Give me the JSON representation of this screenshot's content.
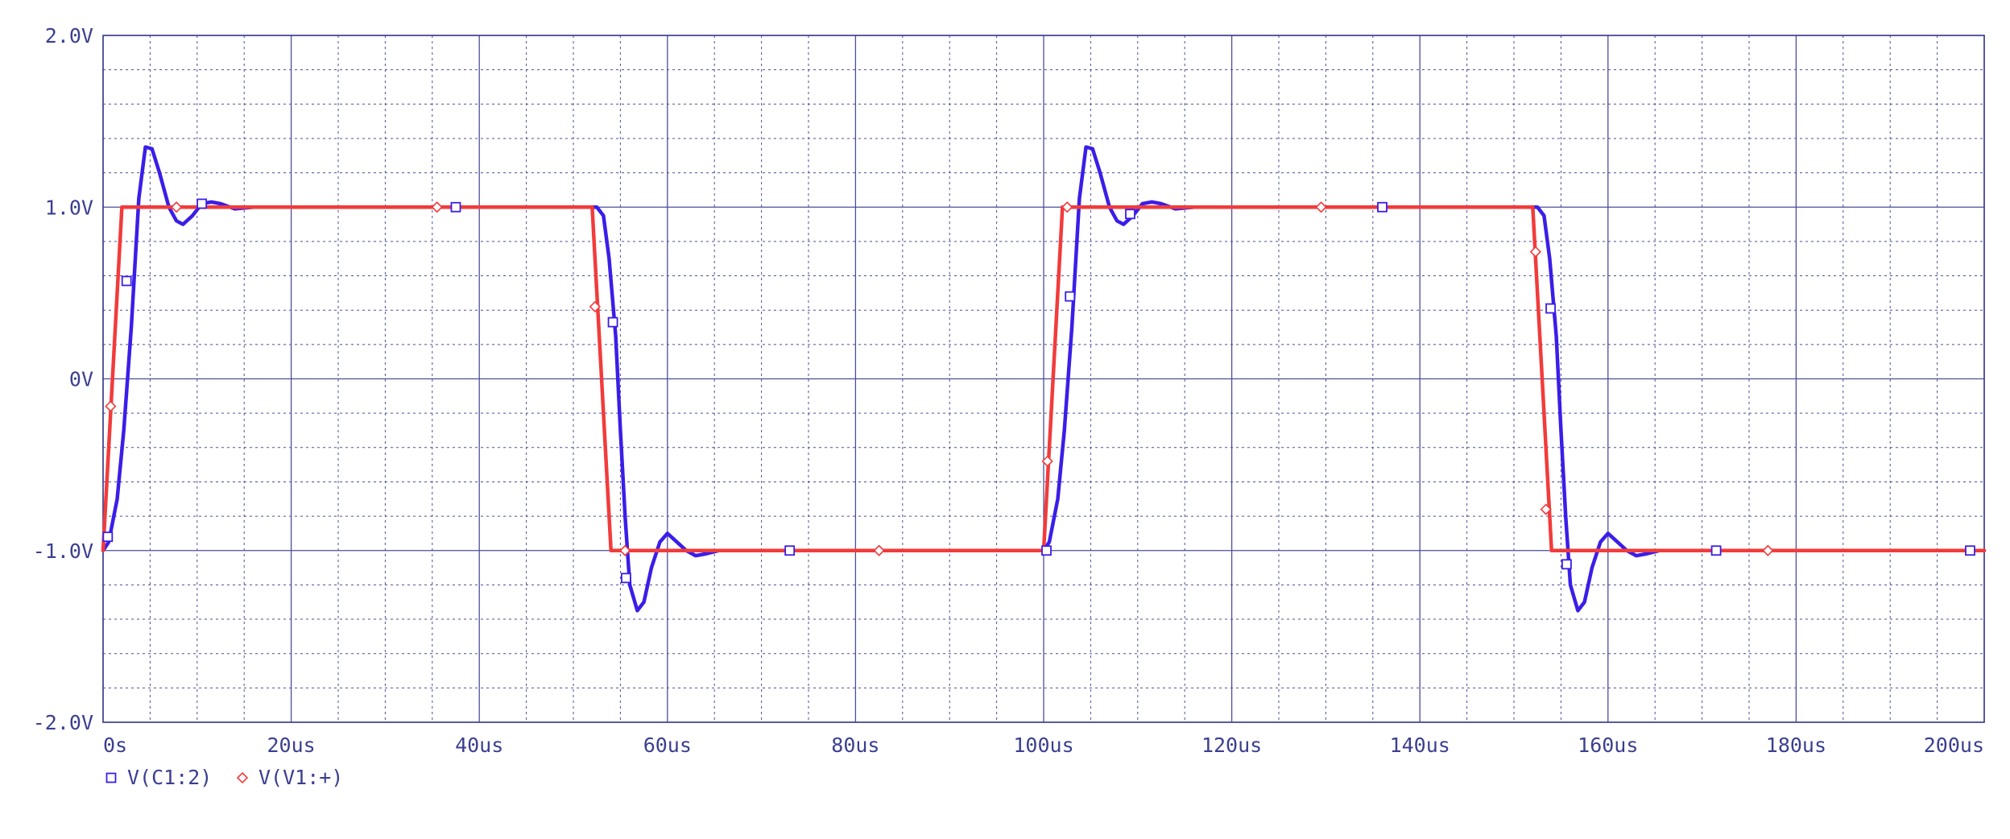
{
  "chart_data": {
    "type": "line",
    "title": "",
    "xlabel": "",
    "ylabel": "",
    "xlim": [
      0,
      200
    ],
    "ylim": [
      -2.0,
      2.0
    ],
    "x_unit": "us",
    "y_unit": "V",
    "grid": true,
    "x_ticks": [
      0,
      20,
      40,
      60,
      80,
      100,
      120,
      140,
      160,
      180,
      200
    ],
    "x_tick_labels": [
      "0s",
      "20us",
      "40us",
      "60us",
      "80us",
      "100us",
      "120us",
      "140us",
      "160us",
      "180us",
      "200us"
    ],
    "y_ticks": [
      2.0,
      1.0,
      0,
      -1.0,
      -2.0
    ],
    "y_tick_labels": [
      "2.0V",
      "1.0V",
      "0V",
      "-1.0V",
      "-2.0V"
    ],
    "legend_position": "bottom-left",
    "series": [
      {
        "name": "V(C1:2)",
        "color": "#3a1ee8",
        "marker": "square",
        "points": [
          [
            0,
            -1.0
          ],
          [
            0.6,
            -0.95
          ],
          [
            1.5,
            -0.7
          ],
          [
            2.2,
            -0.3
          ],
          [
            3,
            0.3
          ],
          [
            3.8,
            1.05
          ],
          [
            4.5,
            1.35
          ],
          [
            5.2,
            1.34
          ],
          [
            6,
            1.2
          ],
          [
            7,
            1.0
          ],
          [
            7.8,
            0.92
          ],
          [
            8.5,
            0.9
          ],
          [
            9.5,
            0.95
          ],
          [
            10.5,
            1.02
          ],
          [
            11.5,
            1.03
          ],
          [
            12.5,
            1.02
          ],
          [
            14,
            0.99
          ],
          [
            16,
            1.0
          ],
          [
            20,
            1.0
          ],
          [
            30,
            1.0
          ],
          [
            40,
            1.0
          ],
          [
            50,
            1.0
          ],
          [
            52.5,
            1.0
          ],
          [
            53.2,
            0.95
          ],
          [
            53.8,
            0.7
          ],
          [
            54.5,
            0.25
          ],
          [
            55,
            -0.3
          ],
          [
            55.5,
            -0.8
          ],
          [
            56,
            -1.2
          ],
          [
            56.8,
            -1.35
          ],
          [
            57.5,
            -1.3
          ],
          [
            58.3,
            -1.1
          ],
          [
            59.2,
            -0.95
          ],
          [
            60,
            -0.9
          ],
          [
            61,
            -0.95
          ],
          [
            62,
            -1.0
          ],
          [
            63,
            -1.03
          ],
          [
            64,
            -1.02
          ],
          [
            65.5,
            -1.0
          ],
          [
            68,
            -1.0
          ],
          [
            80,
            -1.0
          ],
          [
            90,
            -1.0
          ],
          [
            100,
            -1.0
          ],
          [
            100.6,
            -0.95
          ],
          [
            101.5,
            -0.7
          ],
          [
            102.2,
            -0.3
          ],
          [
            103,
            0.3
          ],
          [
            103.8,
            1.05
          ],
          [
            104.5,
            1.35
          ],
          [
            105.2,
            1.34
          ],
          [
            106,
            1.2
          ],
          [
            107,
            1.0
          ],
          [
            107.8,
            0.92
          ],
          [
            108.5,
            0.9
          ],
          [
            109.5,
            0.95
          ],
          [
            110.5,
            1.02
          ],
          [
            111.5,
            1.03
          ],
          [
            112.5,
            1.02
          ],
          [
            114,
            0.99
          ],
          [
            116,
            1.0
          ],
          [
            130,
            1.0
          ],
          [
            140,
            1.0
          ],
          [
            152.5,
            1.0
          ],
          [
            153.2,
            0.95
          ],
          [
            153.8,
            0.7
          ],
          [
            154.5,
            0.25
          ],
          [
            155,
            -0.3
          ],
          [
            155.5,
            -0.8
          ],
          [
            156,
            -1.2
          ],
          [
            156.8,
            -1.35
          ],
          [
            157.5,
            -1.3
          ],
          [
            158.3,
            -1.1
          ],
          [
            159.2,
            -0.95
          ],
          [
            160,
            -0.9
          ],
          [
            161,
            -0.95
          ],
          [
            162,
            -1.0
          ],
          [
            163,
            -1.03
          ],
          [
            164,
            -1.02
          ],
          [
            165.5,
            -1.0
          ],
          [
            170,
            -1.0
          ],
          [
            200,
            -1.0
          ]
        ],
        "markers": [
          [
            0.5,
            -0.92
          ],
          [
            2.5,
            0.57
          ],
          [
            10.5,
            1.02
          ],
          [
            37.5,
            1.0
          ],
          [
            54.2,
            0.33
          ],
          [
            55.6,
            -1.16
          ],
          [
            73,
            -1.0
          ],
          [
            100.3,
            -1.0
          ],
          [
            102.8,
            0.48
          ],
          [
            109.2,
            0.96
          ],
          [
            136,
            1.0
          ],
          [
            153.9,
            0.41
          ],
          [
            155.6,
            -1.08
          ],
          [
            171.5,
            -1.0
          ],
          [
            198.5,
            -1.0
          ]
        ]
      },
      {
        "name": "V(V1:+)",
        "color": "#f23b3b",
        "marker": "diamond",
        "points": [
          [
            0,
            -1.0
          ],
          [
            2,
            1.0
          ],
          [
            52,
            1.0
          ],
          [
            54,
            -1.0
          ],
          [
            100,
            -1.0
          ],
          [
            102,
            1.0
          ],
          [
            152,
            1.0
          ],
          [
            154,
            -1.0
          ],
          [
            200,
            -1.0
          ]
        ],
        "markers": [
          [
            0.8,
            -0.16
          ],
          [
            7.8,
            1.0
          ],
          [
            35.5,
            1.0
          ],
          [
            52.3,
            0.42
          ],
          [
            55.5,
            -1.0
          ],
          [
            82.5,
            -1.0
          ],
          [
            100.4,
            -0.48
          ],
          [
            102.5,
            1.0
          ],
          [
            129.5,
            1.0
          ],
          [
            152.3,
            0.74
          ],
          [
            153.4,
            -0.76
          ],
          [
            177,
            -1.0
          ]
        ]
      }
    ]
  }
}
